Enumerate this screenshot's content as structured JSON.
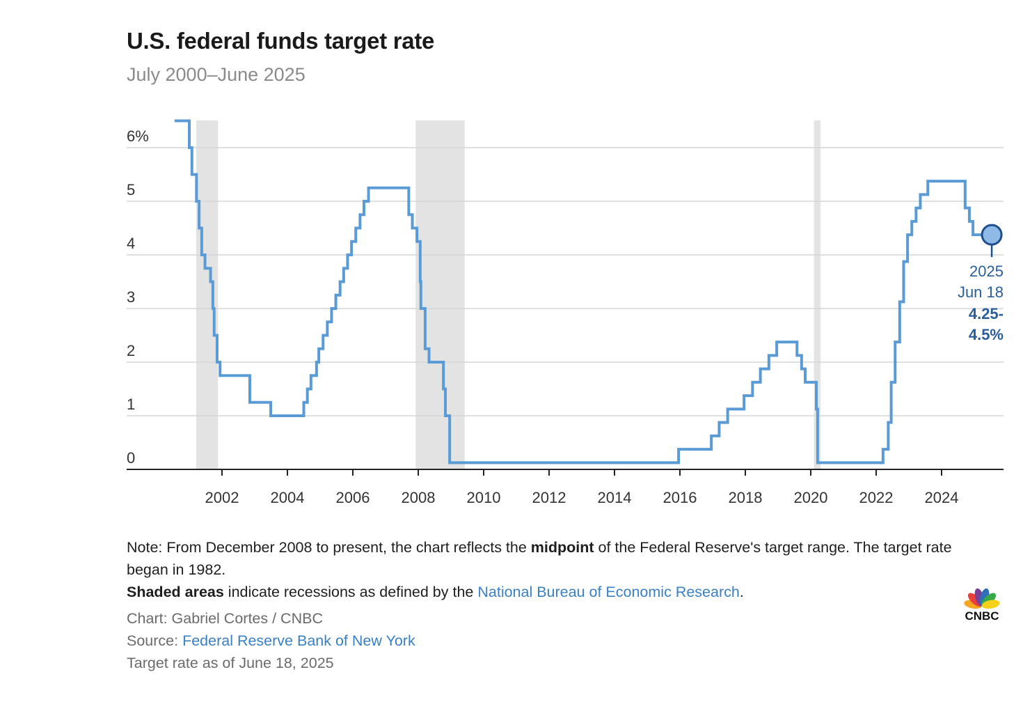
{
  "header": {
    "title": "U.S. federal funds target rate",
    "subtitle": "July 2000–June 2025"
  },
  "chart_data": {
    "type": "line",
    "title": "U.S. federal funds target rate",
    "subtitle": "July 2000–June 2025",
    "xlabel": "",
    "ylabel": "",
    "x_range": [
      2000.55,
      2025.75
    ],
    "ylim": [
      0,
      6.5
    ],
    "y_ticks": [
      0,
      1,
      2,
      3,
      4,
      5,
      6
    ],
    "y_tick_labels": [
      "0",
      "1",
      "2",
      "3",
      "4",
      "5",
      "6%"
    ],
    "x_ticks": [
      2002,
      2004,
      2006,
      2008,
      2010,
      2012,
      2014,
      2016,
      2018,
      2020,
      2022,
      2024
    ],
    "x_tick_labels": [
      "2002",
      "2004",
      "2006",
      "2008",
      "2010",
      "2012",
      "2014",
      "2016",
      "2018",
      "2020",
      "2022",
      "2024"
    ],
    "grid": true,
    "step": true,
    "line_color": "#5b9bd5",
    "recession_color": "#e3e3e3",
    "recessions": [
      {
        "start": 2001.21,
        "end": 2001.88
      },
      {
        "start": 2007.92,
        "end": 2009.42
      },
      {
        "start": 2020.1,
        "end": 2020.3
      }
    ],
    "series": [
      {
        "name": "",
        "points": [
          [
            2000.55,
            6.5
          ],
          [
            2001.0,
            6.0
          ],
          [
            2001.08,
            5.5
          ],
          [
            2001.22,
            5.0
          ],
          [
            2001.3,
            4.5
          ],
          [
            2001.38,
            4.0
          ],
          [
            2001.48,
            3.75
          ],
          [
            2001.65,
            3.5
          ],
          [
            2001.72,
            3.0
          ],
          [
            2001.76,
            2.5
          ],
          [
            2001.85,
            2.0
          ],
          [
            2001.94,
            1.75
          ],
          [
            2002.85,
            1.25
          ],
          [
            2003.49,
            1.0
          ],
          [
            2004.5,
            1.25
          ],
          [
            2004.61,
            1.5
          ],
          [
            2004.72,
            1.75
          ],
          [
            2004.89,
            2.0
          ],
          [
            2004.96,
            2.25
          ],
          [
            2005.09,
            2.5
          ],
          [
            2005.22,
            2.75
          ],
          [
            2005.35,
            3.0
          ],
          [
            2005.48,
            3.25
          ],
          [
            2005.61,
            3.5
          ],
          [
            2005.72,
            3.75
          ],
          [
            2005.84,
            4.0
          ],
          [
            2005.96,
            4.25
          ],
          [
            2006.09,
            4.5
          ],
          [
            2006.22,
            4.75
          ],
          [
            2006.34,
            5.0
          ],
          [
            2006.48,
            5.25
          ],
          [
            2007.71,
            4.75
          ],
          [
            2007.82,
            4.5
          ],
          [
            2007.96,
            4.25
          ],
          [
            2008.06,
            3.5
          ],
          [
            2008.08,
            3.0
          ],
          [
            2008.21,
            2.25
          ],
          [
            2008.33,
            2.0
          ],
          [
            2008.77,
            1.5
          ],
          [
            2008.83,
            1.0
          ],
          [
            2008.96,
            0.125
          ],
          [
            2015.96,
            0.375
          ],
          [
            2016.96,
            0.625
          ],
          [
            2017.2,
            0.875
          ],
          [
            2017.46,
            1.125
          ],
          [
            2017.96,
            1.375
          ],
          [
            2018.22,
            1.625
          ],
          [
            2018.46,
            1.875
          ],
          [
            2018.72,
            2.125
          ],
          [
            2018.96,
            2.375
          ],
          [
            2019.58,
            2.125
          ],
          [
            2019.72,
            1.875
          ],
          [
            2019.83,
            1.625
          ],
          [
            2020.17,
            1.125
          ],
          [
            2020.21,
            0.125
          ],
          [
            2022.21,
            0.375
          ],
          [
            2022.37,
            0.875
          ],
          [
            2022.46,
            1.625
          ],
          [
            2022.58,
            2.375
          ],
          [
            2022.72,
            3.125
          ],
          [
            2022.84,
            3.875
          ],
          [
            2022.96,
            4.375
          ],
          [
            2023.09,
            4.625
          ],
          [
            2023.22,
            4.875
          ],
          [
            2023.35,
            5.125
          ],
          [
            2023.58,
            5.375
          ],
          [
            2024.72,
            4.875
          ],
          [
            2024.85,
            4.625
          ],
          [
            2024.96,
            4.375
          ],
          [
            2025.47,
            4.375
          ]
        ]
      }
    ],
    "callout": {
      "line1": "2025",
      "line2": "Jun 18",
      "line3": "4.25-",
      "line4": "4.5%",
      "x": 2025.47,
      "y": 4.375
    }
  },
  "notes": {
    "line1_pre": "Note: From December 2008 to present, the chart reflects the ",
    "line1_bold": "midpoint",
    "line1_post": " of the Federal Reserve's target range. The target rate began in 1982.",
    "line2_bold": "Shaded areas",
    "line2_pre": " indicate recessions as defined by the ",
    "line2_link": "National Bureau of Economic Research",
    "line2_post": "."
  },
  "credits": {
    "chart": "Chart: Gabriel Cortes / CNBC",
    "source_label": "Source: ",
    "source_link": "Federal Reserve Bank of New York",
    "asof": "Target rate as of June 18, 2025"
  },
  "logo": {
    "name": "CNBC",
    "colors": [
      "#f5a623",
      "#e8413c",
      "#7b3f98",
      "#2e6fb7",
      "#37a846",
      "#f7d117"
    ]
  }
}
